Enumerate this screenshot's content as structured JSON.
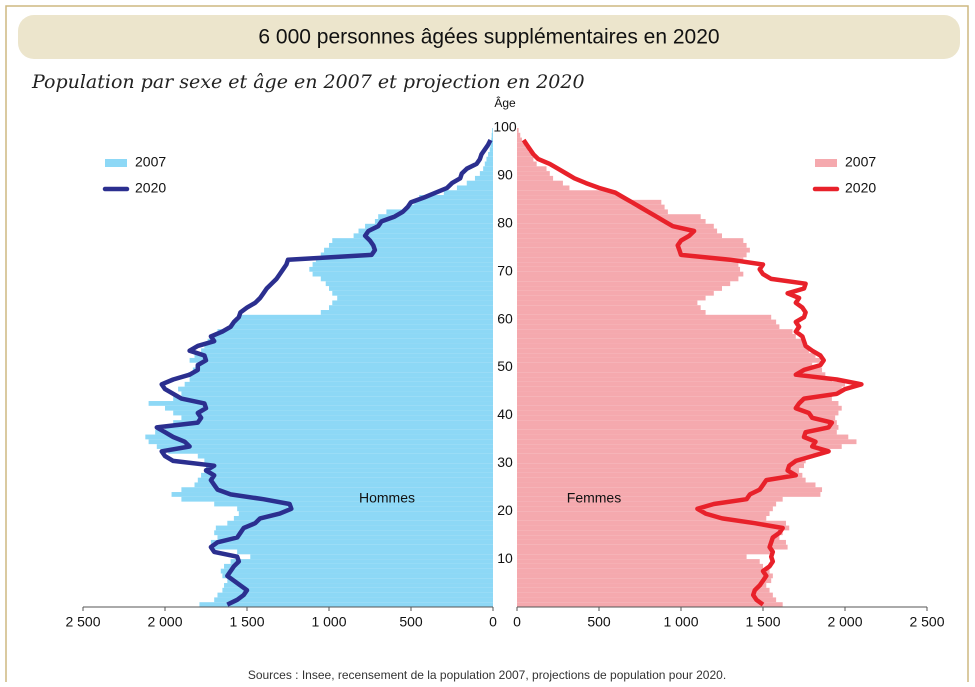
{
  "chart_data": {
    "type": "pyramid",
    "title": "6 000 personnes âgées supplémentaires en 2020",
    "subtitle": "Population par sexe et âge en 2007 et projection en 2020",
    "y_label": "Âge",
    "source": "Sources : Insee, recensement de la population 2007, projections de population pour 2020.",
    "ylim": [
      0,
      100
    ],
    "yticks": [
      10,
      20,
      30,
      40,
      50,
      60,
      70,
      80,
      90,
      100
    ],
    "xlim": [
      0,
      2500
    ],
    "xticks": [
      0,
      500,
      {
        "value": 1000,
        "label": "1 000"
      },
      {
        "value": 1500,
        "label": "1 500"
      },
      {
        "value": 2000,
        "label": "2 000"
      },
      {
        "value": 2500,
        "label": "2 500"
      }
    ],
    "panels": [
      {
        "label": "Hommes",
        "side": "left",
        "series": [
          {
            "name": "2007",
            "kind": "bar",
            "color": "#8dd8f6",
            "values": [
              1790,
              1700,
              1680,
              1650,
              1640,
              1620,
              1650,
              1660,
              1640,
              1600,
              1480,
              1560,
              1700,
              1720,
              1680,
              1700,
              1690,
              1620,
              1580,
              1550,
              1560,
              1700,
              1900,
              1960,
              1900,
              1820,
              1800,
              1780,
              1760,
              1750,
              1760,
              1800,
              1980,
              2050,
              2100,
              2120,
              2060,
              2000,
              1950,
              1900,
              1950,
              2000,
              2100,
              1950,
              1900,
              1920,
              1880,
              1850,
              1860,
              1830,
              1800,
              1850,
              1820,
              1780,
              1760,
              1740,
              1700,
              1680,
              1600,
              1580,
              1550,
              1050,
              1000,
              980,
              950,
              980,
              1000,
              1020,
              1050,
              1100,
              1120,
              1100,
              1080,
              1050,
              1030,
              1000,
              980,
              850,
              820,
              780,
              720,
              700,
              650,
              520,
              480,
              450,
              300,
              220,
              160,
              110,
              80,
              60,
              50,
              40,
              30,
              20,
              15,
              10,
              8,
              5
            ]
          },
          {
            "name": "2020",
            "kind": "line",
            "color": "#2b2f8f",
            "values": [
              1620,
              1560,
              1520,
              1500,
              1540,
              1580,
              1620,
              1600,
              1580,
              1550,
              1560,
              1700,
              1720,
              1680,
              1560,
              1540,
              1520,
              1450,
              1420,
              1300,
              1230,
              1240,
              1400,
              1600,
              1680,
              1700,
              1720,
              1700,
              1750,
              1700,
              1950,
              2000,
              2020,
              1850,
              1880,
              1950,
              2000,
              2050,
              1800,
              1780,
              1800,
              1750,
              1760,
              1900,
              1950,
              2000,
              2020,
              1950,
              1850,
              1800,
              1800,
              1750,
              1760,
              1850,
              1800,
              1700,
              1720,
              1650,
              1600,
              1580,
              1550,
              1540,
              1500,
              1450,
              1420,
              1400,
              1380,
              1350,
              1320,
              1300,
              1280,
              1260,
              1250,
              740,
              720,
              730,
              750,
              780,
              760,
              700,
              680,
              600,
              550,
              520,
              500,
              420,
              350,
              280,
              250,
              200,
              190,
              160,
              100,
              80,
              70,
              50,
              30,
              15,
              null,
              null
            ]
          }
        ]
      },
      {
        "label": "Femmes",
        "side": "right",
        "series": [
          {
            "name": "2007",
            "kind": "bar",
            "color": "#f5a9ae",
            "values": [
              1620,
              1580,
              1560,
              1540,
              1520,
              1550,
              1560,
              1540,
              1500,
              1480,
              1400,
              1550,
              1650,
              1640,
              1600,
              1620,
              1660,
              1640,
              1520,
              1540,
              1560,
              1580,
              1620,
              1850,
              1860,
              1820,
              1760,
              1740,
              1720,
              1750,
              1760,
              1800,
              1900,
              1980,
              2070,
              2020,
              1950,
              1960,
              1950,
              1940,
              1960,
              1980,
              1960,
              1920,
              1950,
              1980,
              2000,
              1920,
              1880,
              1860,
              1800,
              1850,
              1820,
              1780,
              1760,
              1740,
              1700,
              1680,
              1600,
              1580,
              1550,
              1150,
              1120,
              1100,
              1150,
              1200,
              1250,
              1300,
              1350,
              1380,
              1360,
              1350,
              1380,
              1400,
              1420,
              1400,
              1380,
              1250,
              1220,
              1200,
              1150,
              1120,
              920,
              900,
              880,
              650,
              600,
              320,
              280,
              220,
              200,
              180,
              120,
              100,
              90,
              70,
              50,
              30,
              20,
              10
            ]
          },
          {
            "name": "2020",
            "kind": "line",
            "color": "#e8212a",
            "values": [
              1500,
              1460,
              1440,
              1450,
              1480,
              1500,
              1520,
              1500,
              1540,
              1560,
              1550,
              1560,
              1540,
              1550,
              1560,
              1600,
              1620,
              1450,
              1250,
              1150,
              1100,
              1200,
              1400,
              1420,
              1480,
              1500,
              1520,
              1700,
              1650,
              1660,
              1700,
              1800,
              1900,
              1800,
              1820,
              1750,
              1760,
              1900,
              1920,
              1800,
              1780,
              1700,
              1720,
              1750,
              1950,
              2000,
              2100,
              1950,
              1700,
              1750,
              1850,
              1870,
              1850,
              1800,
              1760,
              1750,
              1740,
              1700,
              1720,
              1700,
              1750,
              1760,
              1740,
              1700,
              1720,
              1650,
              1750,
              1760,
              1550,
              1500,
              1480,
              1500,
              1300,
              1000,
              990,
              980,
              1000,
              1050,
              1080,
              950,
              900,
              850,
              800,
              750,
              700,
              650,
              600,
              500,
              420,
              350,
              300,
              250,
              200,
              130,
              100,
              80,
              60,
              40,
              null,
              null
            ]
          }
        ]
      }
    ]
  }
}
